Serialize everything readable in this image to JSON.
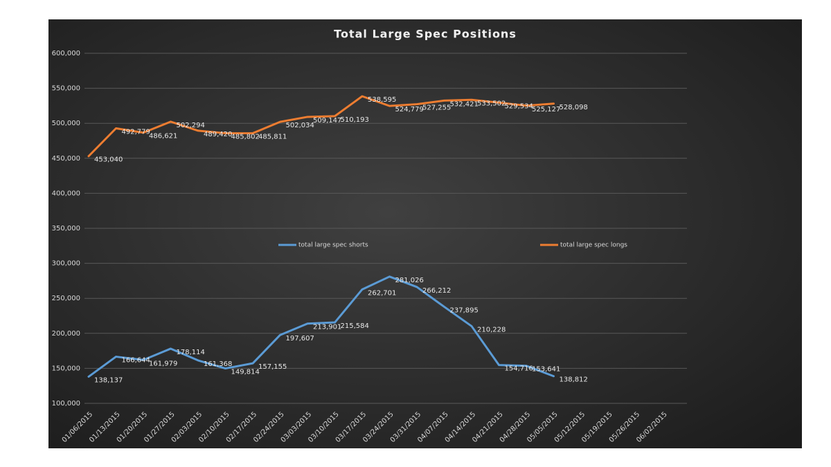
{
  "chart_data": {
    "type": "line",
    "title": "Total  Large  Spec  Positions",
    "categories": [
      "01/06/2015",
      "01/13/2015",
      "01/20/2015",
      "01/27/2015",
      "02/03/2015",
      "02/10/2015",
      "02/17/2015",
      "02/24/2015",
      "03/03/2015",
      "03/10/2015",
      "03/17/2015",
      "03/24/2015",
      "03/31/2015",
      "04/07/2015",
      "04/14/2015",
      "04/21/2015",
      "04/28/2015",
      "05/05/2015",
      "05/12/2015",
      "05/19/2015",
      "05/26/2015",
      "06/02/2015"
    ],
    "series": [
      {
        "name": "total large spec shorts",
        "color": "#5b9bd5",
        "values": [
          138137,
          166644,
          161979,
          178114,
          161368,
          149814,
          157155,
          197607,
          213901,
          215584,
          262701,
          281026,
          266212,
          237895,
          210228,
          154716,
          153641,
          138812,
          null,
          null,
          null,
          null
        ],
        "value_labels": [
          "138,137",
          "166,644",
          "161,979",
          "178,114",
          "161,368",
          "149,814",
          "157,155",
          "197,607",
          "213,901",
          "215,584",
          "262,701",
          "281,026",
          "266,212",
          "237,895",
          "210,228",
          "154,716",
          "153,641",
          "138,812",
          null,
          null,
          null,
          null
        ]
      },
      {
        "name": "total large spec longs",
        "color": "#ed7d31",
        "values": [
          453040,
          492779,
          486621,
          502294,
          489420,
          485802,
          485811,
          502034,
          509147,
          510193,
          538595,
          524779,
          527255,
          532421,
          533502,
          529534,
          525127,
          528098,
          null,
          null,
          null,
          null
        ],
        "value_labels": [
          "453,040",
          "492,779",
          "486,621",
          "502,294",
          "489,420",
          "485,802",
          "485,811",
          "502,034",
          "509,147",
          "510,193",
          "538,595",
          "524,779",
          "527,255",
          "532,421",
          "533,502",
          "529,534",
          "525,127",
          "528,098",
          null,
          null,
          null,
          null
        ]
      }
    ],
    "ylim": [
      100000,
      600000
    ],
    "yticks": [
      {
        "value": 100000,
        "label": "100,000"
      },
      {
        "value": 150000,
        "label": "150,000"
      },
      {
        "value": 200000,
        "label": "200,000"
      },
      {
        "value": 250000,
        "label": "250,000"
      },
      {
        "value": 300000,
        "label": "300,000"
      },
      {
        "value": 350000,
        "label": "350,000"
      },
      {
        "value": 400000,
        "label": "400,000"
      },
      {
        "value": 450000,
        "label": "450,000"
      },
      {
        "value": 500000,
        "label": "500,000"
      },
      {
        "value": 550000,
        "label": "550,000"
      },
      {
        "value": 600000,
        "label": "600,000"
      }
    ],
    "grid": true,
    "legend": "center"
  }
}
